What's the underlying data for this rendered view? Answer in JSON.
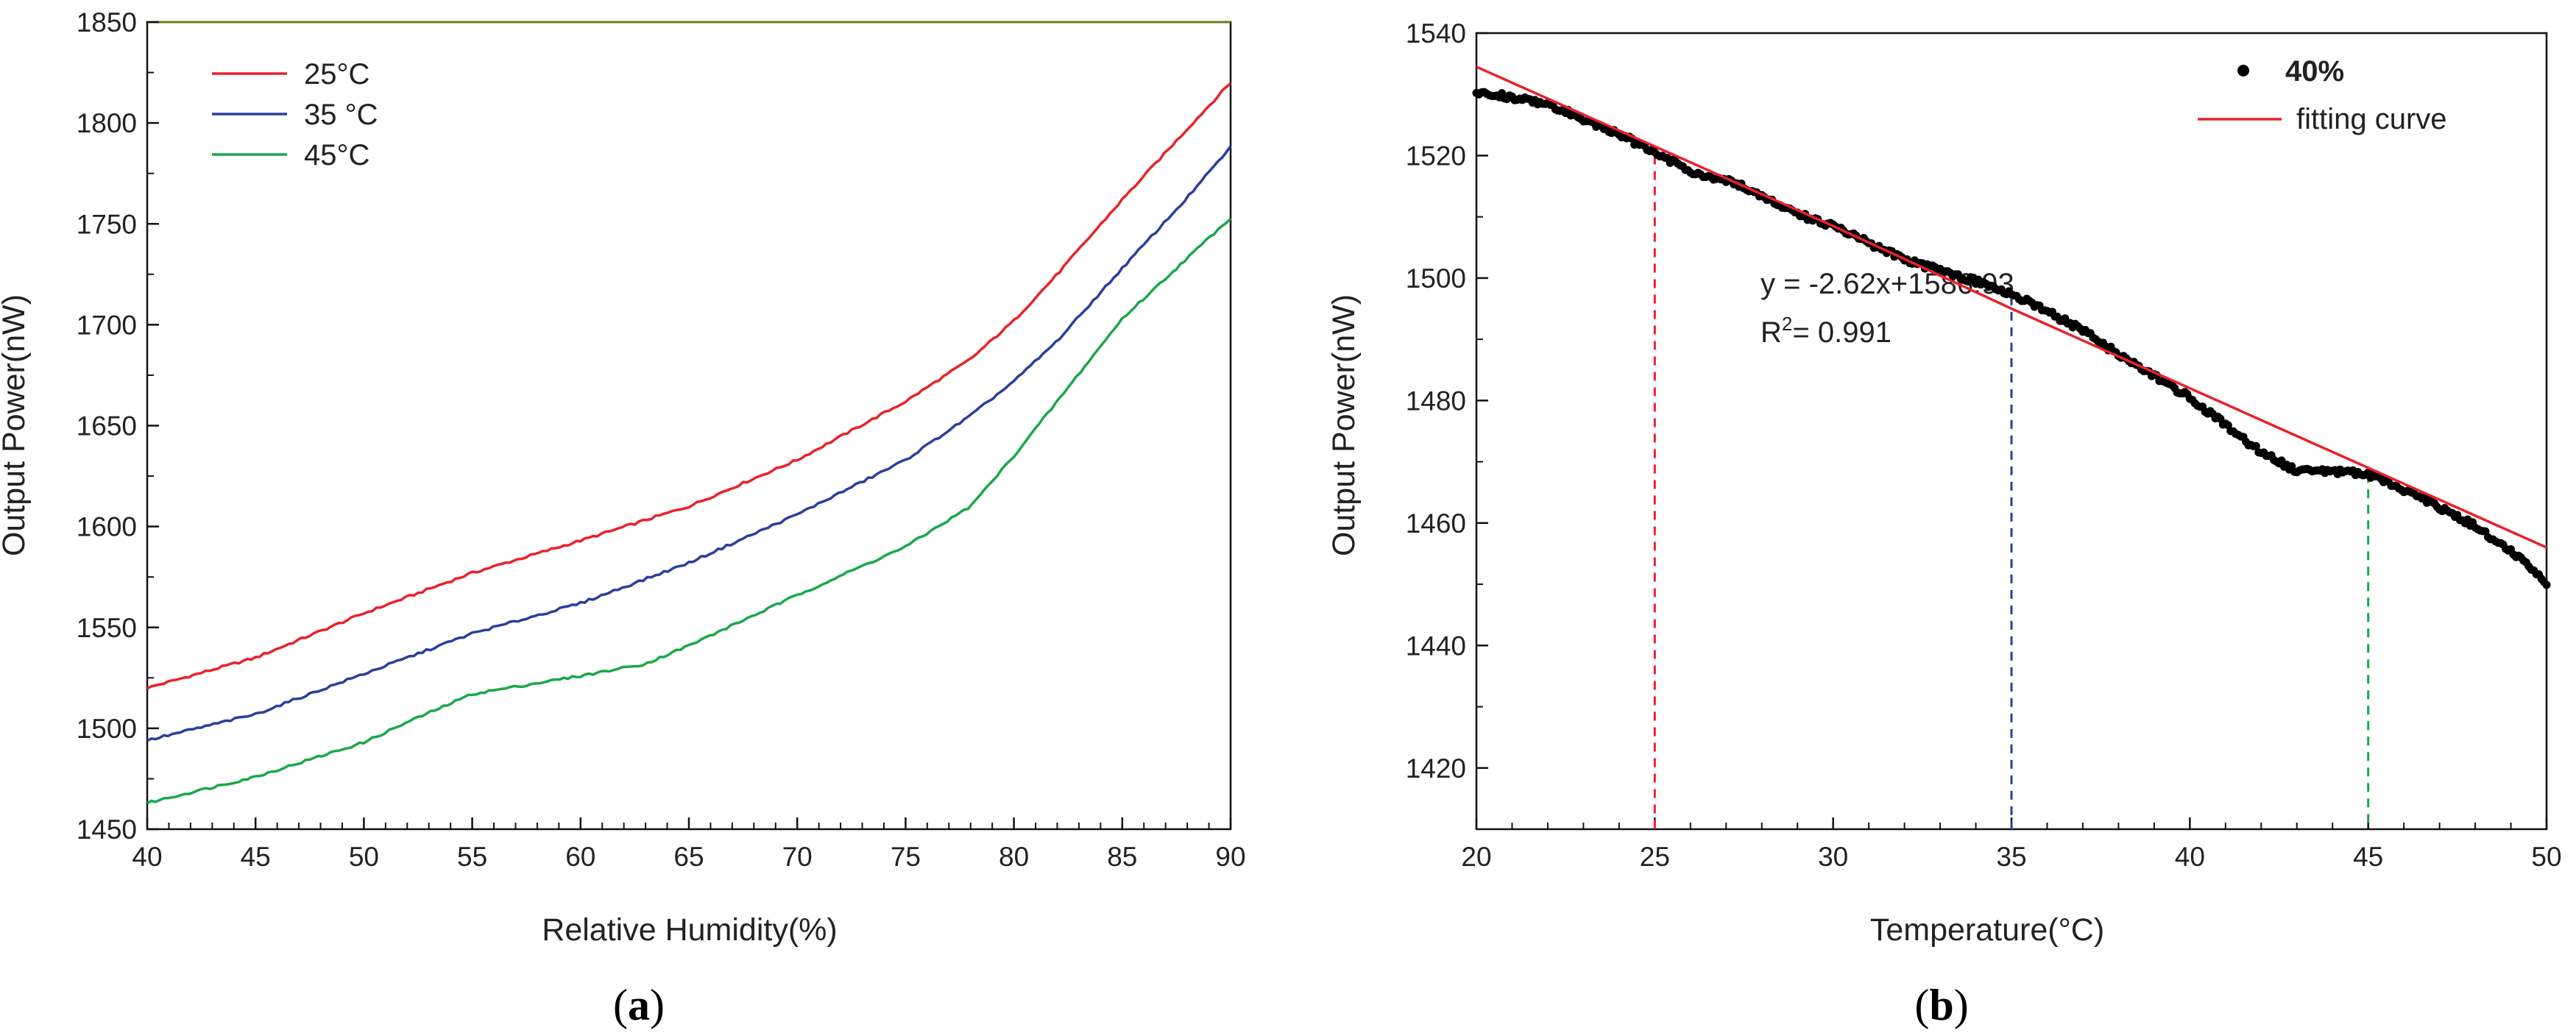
{
  "chart_data": [
    {
      "panel": "(a)",
      "panel_letter": "a",
      "type": "line",
      "xlabel": "Relative Humidity(%)",
      "ylabel": "Output Power(nW)",
      "xlim": [
        40,
        90
      ],
      "ylim": [
        1450,
        1850
      ],
      "xticks": [
        40,
        45,
        50,
        55,
        60,
        65,
        70,
        75,
        80,
        85,
        90
      ],
      "yticks": [
        1450,
        1500,
        1550,
        1600,
        1650,
        1700,
        1750,
        1800,
        1850
      ],
      "legend_position": "top-left",
      "series": [
        {
          "name": "25°C",
          "color": "#e8222a",
          "x": [
            40,
            45,
            50,
            55,
            60,
            65,
            70,
            75,
            78,
            80,
            82,
            85,
            88,
            90
          ],
          "y": [
            1520,
            1535,
            1557,
            1577,
            1593,
            1610,
            1633,
            1662,
            1683,
            1702,
            1725,
            1762,
            1797,
            1820
          ]
        },
        {
          "name": "35 °C",
          "color": "#2b3f9a",
          "x": [
            40,
            45,
            50,
            55,
            60,
            65,
            70,
            75,
            78,
            80,
            82,
            85,
            88,
            90
          ],
          "y": [
            1494,
            1507,
            1527,
            1547,
            1562,
            1582,
            1606,
            1633,
            1655,
            1672,
            1692,
            1728,
            1763,
            1788
          ]
        },
        {
          "name": "45°C",
          "color": "#1aa84a",
          "x": [
            40,
            45,
            50,
            52,
            55,
            60,
            63,
            65,
            70,
            75,
            78,
            80,
            82,
            85,
            88,
            90
          ],
          "y": [
            1463,
            1476,
            1493,
            1503,
            1517,
            1526,
            1532,
            1541,
            1566,
            1590,
            1610,
            1635,
            1662,
            1703,
            1733,
            1753
          ]
        }
      ]
    },
    {
      "panel": "(b)",
      "panel_letter": "b",
      "type": "scatter",
      "xlabel": "Temperature(°C)",
      "ylabel": "Output Power(nW)",
      "xlim": [
        20,
        50
      ],
      "ylim": [
        1410,
        1540
      ],
      "xticks": [
        20,
        25,
        30,
        35,
        40,
        45,
        50
      ],
      "yticks": [
        1420,
        1440,
        1460,
        1480,
        1500,
        1520,
        1540
      ],
      "legend_position": "top-right",
      "series": [
        {
          "name": "40%",
          "kind": "scatter",
          "color": "#000000",
          "x": [
            20,
            22,
            24,
            25,
            26,
            27.5,
            29,
            30,
            32,
            34,
            35,
            36,
            37,
            38,
            40,
            42,
            43,
            44,
            45,
            46,
            47,
            48,
            49,
            50
          ],
          "y": [
            1530.5,
            1528.5,
            1523.5,
            1520.5,
            1517.5,
            1515,
            1510.5,
            1508.5,
            1503,
            1499.5,
            1497.5,
            1494.5,
            1491.5,
            1487.5,
            1480.5,
            1471.5,
            1468.5,
            1468.5,
            1468,
            1465.5,
            1462.5,
            1459.5,
            1455.5,
            1450
          ]
        },
        {
          "name": "fitting curve",
          "kind": "line",
          "color": "#e8222a",
          "x": [
            20,
            25,
            30,
            35,
            40,
            45,
            50
          ],
          "y": [
            1534.5,
            1521.5,
            1508.5,
            1495,
            1482,
            1469,
            1456
          ]
        }
      ],
      "annotations": {
        "equation": "y = -2.62x+1586.93",
        "r2_prefix": "R",
        "r2_sup": "2",
        "r2_suffix": "= 0.991"
      },
      "reference_lines": [
        {
          "x": 25,
          "y": 1520,
          "color": "#e8222a"
        },
        {
          "x": 35,
          "y": 1497,
          "color": "#2b3f9a"
        },
        {
          "x": 45,
          "y": 1468,
          "color": "#1aa84a"
        }
      ]
    }
  ]
}
